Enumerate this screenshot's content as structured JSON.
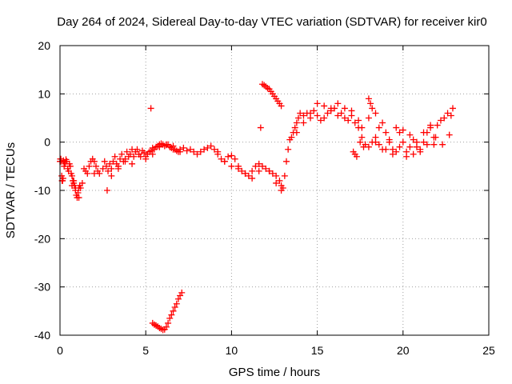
{
  "chart_data": {
    "type": "scatter",
    "title": "Day 264 of 2024, Sidereal Day-to-day VTEC variation (SDTVAR) for receiver kir0",
    "xlabel": "GPS time / hours",
    "ylabel": "SDTVAR / TECUs",
    "xlim": [
      0,
      25
    ],
    "ylim": [
      -40,
      20
    ],
    "xticks": [
      0,
      5,
      10,
      15,
      20,
      25
    ],
    "yticks": [
      -40,
      -30,
      -20,
      -10,
      0,
      10,
      20
    ],
    "grid": true,
    "marker": "+",
    "series_color": "#ff0000",
    "series": [
      {
        "name": "SDTVAR",
        "x": [
          0.0,
          0.05,
          0.1,
          0.15,
          0.2,
          0.25,
          0.3,
          0.35,
          0.4,
          0.45,
          0.5,
          0.55,
          0.6,
          0.65,
          0.7,
          0.75,
          0.8,
          0.85,
          0.9,
          0.95,
          1.0,
          1.05,
          1.1,
          1.15,
          1.2,
          1.3,
          1.4,
          1.5,
          1.6,
          1.7,
          1.8,
          1.9,
          2.0,
          2.1,
          2.2,
          2.3,
          2.5,
          2.6,
          2.7,
          2.8,
          2.9,
          3.0,
          3.1,
          3.2,
          3.3,
          3.4,
          3.5,
          3.6,
          3.7,
          3.8,
          3.9,
          4.0,
          4.1,
          4.2,
          4.3,
          4.4,
          4.5,
          4.6,
          4.7,
          4.8,
          4.9,
          5.0,
          5.1,
          5.2,
          5.3,
          5.4,
          5.5,
          5.6,
          5.7,
          5.8,
          5.9,
          6.0,
          6.1,
          6.2,
          6.3,
          6.4,
          6.5,
          6.6,
          6.7,
          6.8,
          6.9,
          7.0,
          7.2,
          7.4,
          7.6,
          7.8,
          8.0,
          8.2,
          8.4,
          8.6,
          8.8,
          9.0,
          9.2,
          9.4,
          9.6,
          9.8,
          10.0,
          10.2,
          10.4,
          10.6,
          10.8,
          11.0,
          11.2,
          11.4,
          11.6,
          11.8,
          12.0,
          12.2,
          12.4,
          12.6,
          12.8,
          12.9,
          13.0,
          13.1,
          13.2,
          13.3,
          13.4,
          13.5,
          13.6,
          13.7,
          13.8,
          13.9,
          14.0,
          14.2,
          14.4,
          14.6,
          14.8,
          15.0,
          15.2,
          15.4,
          15.6,
          15.8,
          16.0,
          16.2,
          16.4,
          16.6,
          16.8,
          17.0,
          17.2,
          17.4,
          17.6,
          17.8,
          18.0,
          18.2,
          18.4,
          18.6,
          18.8,
          19.0,
          19.2,
          19.4,
          19.6,
          19.8,
          20.0,
          20.2,
          20.4,
          20.6,
          20.8,
          21.0,
          21.2,
          21.4,
          21.6,
          21.8,
          22.0,
          22.2,
          22.4,
          22.6,
          22.8,
          22.9,
          0.02,
          0.06,
          0.12,
          0.18,
          0.24,
          0.7,
          0.8,
          0.9,
          1.1,
          2.0,
          2.75,
          3.0,
          3.4,
          3.8,
          4.2,
          4.6,
          5.0,
          5.4,
          5.8,
          6.2,
          6.6,
          7.0,
          9.2,
          9.6,
          10.0,
          10.4,
          10.8,
          11.2,
          11.6,
          12.2,
          12.6,
          12.9,
          13.8,
          14.2,
          14.6,
          15.0,
          15.4,
          15.8,
          16.2,
          16.6,
          17.0,
          17.4,
          17.6,
          18.0,
          18.4,
          18.8,
          19.2,
          19.6,
          20.0,
          20.4,
          20.8,
          21.2,
          21.6,
          21.9,
          22.3,
          22.7,
          11.7,
          11.8,
          11.9,
          12.0,
          12.1,
          12.2,
          12.3,
          12.4,
          12.5,
          12.6,
          12.7,
          12.8,
          12.9,
          5.3,
          5.4,
          5.5,
          5.6,
          5.7,
          5.8,
          5.9,
          6.0,
          6.1,
          6.2,
          6.3,
          6.4,
          6.5,
          6.6,
          6.7,
          6.8,
          6.9,
          7.0,
          7.1,
          17.1,
          17.2,
          17.3,
          17.5,
          17.7,
          18.0,
          18.1,
          18.2,
          18.4,
          18.6,
          19.0,
          19.4,
          19.8,
          20.2,
          20.6,
          21.0,
          21.4,
          21.8
        ],
        "y": [
          -4.0,
          -3.5,
          -7.0,
          -8.0,
          -3.8,
          -4.2,
          -4.5,
          -3.6,
          -4.0,
          -5.5,
          -6.0,
          -4.5,
          -5.0,
          -6.5,
          -7.0,
          -8.0,
          -8.5,
          -9.0,
          -10.0,
          -11.0,
          -11.5,
          -10.5,
          -9.5,
          -9.0,
          -9.5,
          -8.5,
          -5.5,
          -6.0,
          -6.5,
          -5.0,
          -4.0,
          -3.5,
          -4.0,
          -5.0,
          -6.0,
          -6.5,
          -5.5,
          -4.0,
          -5.0,
          -6.0,
          -4.5,
          -5.5,
          -4.0,
          -3.0,
          -4.5,
          -5.0,
          -3.5,
          -2.5,
          -4.0,
          -3.5,
          -2.0,
          -3.0,
          -2.5,
          -1.5,
          -3.0,
          -2.0,
          -1.5,
          -2.5,
          -3.0,
          -1.8,
          -2.2,
          -3.0,
          -2.5,
          -2.0,
          -1.8,
          -1.2,
          -1.5,
          -1.0,
          -0.8,
          -0.5,
          -0.3,
          -0.5,
          -0.8,
          -0.6,
          -0.5,
          -1.0,
          -1.2,
          -0.8,
          -1.5,
          -1.8,
          -2.0,
          -1.5,
          -1.2,
          -1.8,
          -1.5,
          -2.0,
          -2.5,
          -2.0,
          -1.5,
          -1.2,
          -0.8,
          -1.5,
          -2.5,
          -3.5,
          -4.0,
          -3.0,
          -2.8,
          -3.5,
          -5.0,
          -6.0,
          -6.5,
          -7.0,
          -6.0,
          -5.0,
          -4.5,
          -5.0,
          -5.5,
          -6.0,
          -6.5,
          -7.0,
          -8.0,
          -9.0,
          -9.5,
          -7.0,
          -4.0,
          -1.5,
          0.5,
          1.0,
          2.0,
          3.0,
          4.0,
          5.0,
          6.0,
          5.5,
          6.0,
          5.0,
          6.5,
          5.5,
          4.5,
          5.0,
          6.0,
          6.5,
          7.0,
          5.5,
          6.0,
          5.0,
          4.5,
          5.5,
          4.0,
          3.0,
          1.0,
          -0.5,
          -1.0,
          0.0,
          1.0,
          -0.5,
          -1.5,
          2.0,
          0.0,
          -1.5,
          3.0,
          2.0,
          0.0,
          -2.0,
          1.5,
          0.5,
          -1.0,
          -2.0,
          0.0,
          2.0,
          3.0,
          1.0,
          3.5,
          4.5,
          5.0,
          6.0,
          5.5,
          7.0,
          -3.5,
          -4.0,
          -8.0,
          -7.5,
          -5.0,
          -9.0,
          -8.0,
          -9.5,
          -11.5,
          -6.5,
          -10.0,
          -7.0,
          -5.5,
          -4.0,
          -4.5,
          -2.5,
          -3.5,
          -2.5,
          -1.0,
          -0.5,
          -1.5,
          -2.0,
          -2.0,
          -4.0,
          -5.0,
          -5.5,
          -6.5,
          -7.5,
          -6.0,
          -6.0,
          -8.5,
          -10.0,
          2.0,
          4.0,
          6.0,
          8.0,
          7.5,
          7.0,
          8.0,
          7.0,
          6.5,
          4.5,
          3.0,
          5.0,
          0.0,
          4.0,
          0.5,
          -2.0,
          2.5,
          -1.0,
          0.0,
          2.0,
          3.5,
          1.0,
          -0.5,
          1.5,
          3.0,
          12.0,
          11.8,
          11.5,
          11.2,
          11.0,
          10.5,
          10.0,
          9.5,
          9.0,
          8.5,
          8.0,
          7.5,
          7.0,
          -37.5,
          -37.8,
          -38.0,
          -38.2,
          -38.5,
          -38.7,
          -38.9,
          -38.8,
          -38.3,
          -37.5,
          -36.5,
          -35.8,
          -35.0,
          -34.2,
          -33.5,
          -32.5,
          -31.8,
          -31.2,
          -2.0,
          -2.5,
          -3.0,
          0.0,
          -1.0,
          9.0,
          8.0,
          7.0,
          6.0,
          3.0,
          -1.5,
          -2.5,
          -1.0,
          -3.0,
          -2.5,
          -1.5,
          -0.5,
          -0.5
        ]
      }
    ]
  }
}
